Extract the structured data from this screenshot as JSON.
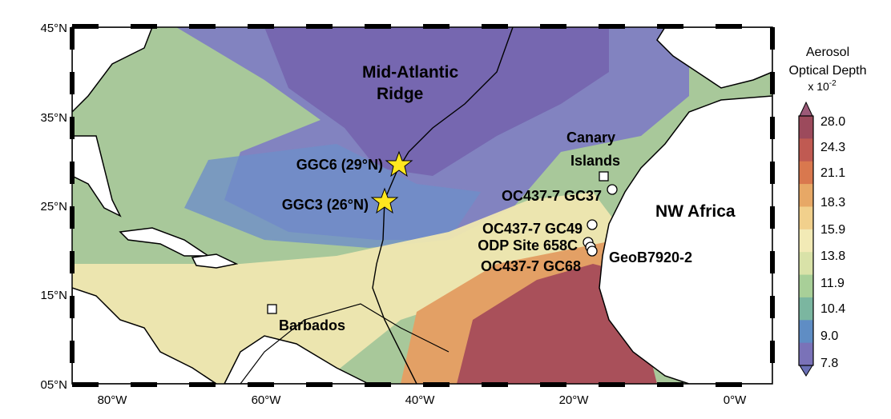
{
  "map": {
    "lat_labels": [
      "45°N",
      "35°N",
      "25°N",
      "15°N",
      "05°N"
    ],
    "lon_labels": [
      "80°W",
      "60°W",
      "40°W",
      "20°W",
      "0°W"
    ],
    "region_labels": {
      "ridge_line1": "Mid-Atlantic",
      "ridge_line2": "Ridge",
      "canary_line1": "Canary",
      "canary_line2": "Islands",
      "africa": "NW Africa",
      "barbados": "Barbados"
    },
    "sites": {
      "ggc6": "GGC6 (29°N)",
      "ggc3": "GGC3 (26°N)",
      "gc37": "OC437-7 GC37",
      "gc49": "OC437-7 GC49",
      "odp": "ODP Site 658C",
      "gc68": "OC437-7 GC68",
      "geob": "GeoB7920-2"
    }
  },
  "legend": {
    "title_line1": "Aerosol",
    "title_line2": "Optical Depth",
    "title_line3": "x 10",
    "exponent": "-2",
    "ticks": [
      "28.0",
      "24.3",
      "21.1",
      "18.3",
      "15.9",
      "13.8",
      "11.9",
      "10.4",
      "9.0",
      "7.8"
    ],
    "colors": [
      "#9c4a5c",
      "#c05a52",
      "#d9784e",
      "#e7a866",
      "#f1d08c",
      "#f2eab6",
      "#d9e2a8",
      "#a8cf98",
      "#7bb6a0",
      "#5f8dc4",
      "#7a72b8"
    ]
  }
}
